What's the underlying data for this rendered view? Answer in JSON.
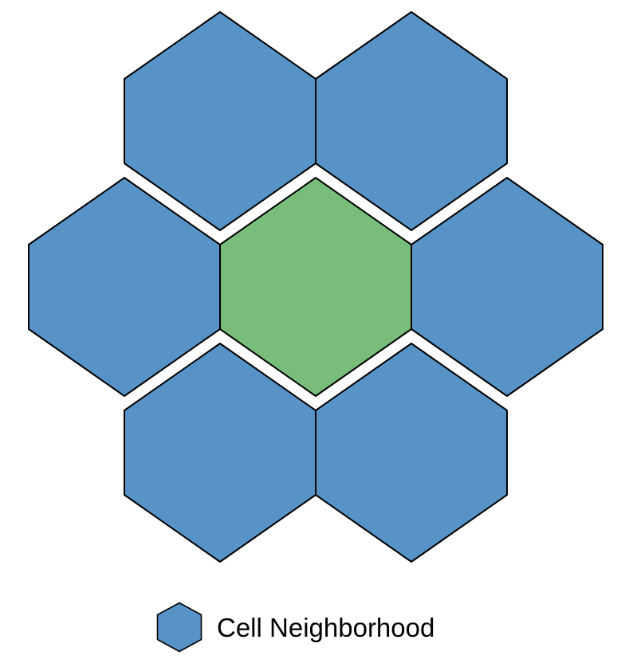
{
  "diagram": {
    "type": "hexagonal-cell-neighborhood",
    "center_cell": {
      "role": "center",
      "color": "#78BE7A"
    },
    "neighbor_cells": [
      {
        "role": "neighbor",
        "position": "top-left",
        "color": "#5893C7"
      },
      {
        "role": "neighbor",
        "position": "top-right",
        "color": "#5893C7"
      },
      {
        "role": "neighbor",
        "position": "left",
        "color": "#5893C7"
      },
      {
        "role": "neighbor",
        "position": "right",
        "color": "#5893C7"
      },
      {
        "role": "neighbor",
        "position": "bottom-left",
        "color": "#5893C7"
      },
      {
        "role": "neighbor",
        "position": "bottom-right",
        "color": "#5893C7"
      }
    ],
    "stroke_color": "#000000"
  },
  "legend": {
    "label": "Cell Neighborhood",
    "swatch_color": "#5893C7"
  }
}
